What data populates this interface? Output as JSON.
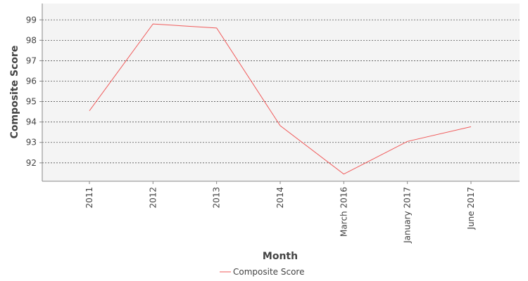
{
  "chart_data": {
    "type": "line",
    "title": "",
    "xlabel": "Month",
    "ylabel": "Composite Score",
    "categories": [
      "2011",
      "2012",
      "2013",
      "2014",
      "March 2016",
      "January 2017",
      "June 2017"
    ],
    "series": [
      {
        "name": "Composite Score",
        "color": "#f05a5a",
        "values": [
          94.55,
          98.8,
          98.6,
          93.82,
          91.45,
          93.05,
          93.77
        ]
      }
    ],
    "yticks": [
      92,
      93,
      94,
      95,
      96,
      97,
      98,
      99
    ],
    "ylim": [
      91.1,
      99.8
    ],
    "grid": true,
    "grid_style": "dashed",
    "plot_background": "#f4f4f4",
    "legend_position": "bottom"
  }
}
